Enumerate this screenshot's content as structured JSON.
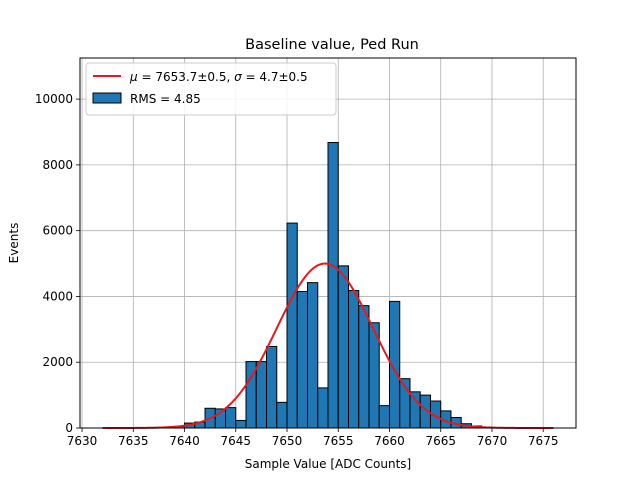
{
  "chart_data": {
    "type": "bar",
    "title": "Baseline value, Ped Run",
    "xlabel": "Sample Value [ADC Counts]",
    "ylabel": "Events",
    "xlim": [
      7629.8,
      7678.2
    ],
    "ylim": [
      0,
      11250
    ],
    "grid": true,
    "legend_position": "top-left",
    "xticks": [
      7630,
      7635,
      7640,
      7645,
      7650,
      7655,
      7660,
      7665,
      7670,
      7675
    ],
    "yticks": [
      0,
      2000,
      4000,
      6000,
      8000,
      10000
    ],
    "histogram": {
      "name": "RMS = 4.85",
      "color": "#1f77b4",
      "edgecolor": "#000000",
      "bin_width": 1,
      "bin_starts": [
        7632,
        7633,
        7634,
        7635,
        7636,
        7637,
        7638,
        7639,
        7640,
        7641,
        7642,
        7643,
        7644,
        7645,
        7646,
        7647,
        7648,
        7649,
        7650,
        7651,
        7652,
        7653,
        7654,
        7655,
        7656,
        7657,
        7658,
        7659,
        7660,
        7661,
        7662,
        7663,
        7664,
        7665,
        7666,
        7667,
        7668,
        7669,
        7670,
        7671,
        7672,
        7673,
        7674,
        7675
      ],
      "counts": [
        0,
        0,
        0,
        0,
        0,
        0,
        20,
        50,
        150,
        180,
        600,
        580,
        620,
        230,
        2020,
        2020,
        2480,
        780,
        6230,
        4150,
        4420,
        1220,
        8680,
        4930,
        4180,
        3720,
        3200,
        680,
        3850,
        1500,
        1100,
        1000,
        820,
        520,
        320,
        130,
        60,
        30,
        10,
        0,
        0,
        0,
        0,
        0
      ]
    },
    "fit": {
      "name": "$\\mu = 7653.7 \\pm 0.5$, $\\sigma = 4.7 \\pm 0.5$",
      "legend_mu": "μ",
      "legend_mu_text": " = 7653.7±0.5, ",
      "legend_sigma": "σ",
      "legend_sigma_text": " = 4.7±0.5",
      "color": "#e41a1c",
      "mu": 7653.7,
      "sigma": 4.7,
      "amplitude": 5000,
      "x_range": [
        7632,
        7676
      ]
    }
  }
}
